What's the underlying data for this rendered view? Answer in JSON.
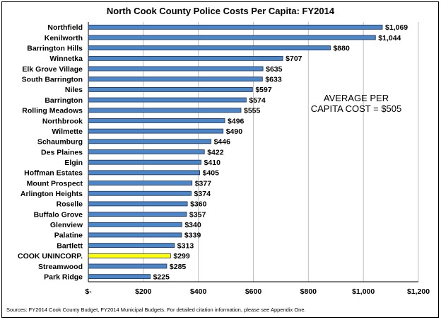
{
  "chart_data": {
    "type": "bar",
    "orientation": "horizontal",
    "title": "North Cook County Police Costs Per Capita: FY2014",
    "categories": [
      "Northfield",
      "Kenilworth",
      "Barrington Hills",
      "Winnetka",
      "Elk Grove Village",
      "South Barrington",
      "Niles",
      "Barrington",
      "Rolling Meadows",
      "Northbrook",
      "Wilmette",
      "Schaumburg",
      "Des Plaines",
      "Elgin",
      "Hoffman Estates",
      "Mount Prospect",
      "Arlington Heights",
      "Roselle",
      "Buffalo Grove",
      "Glenview",
      "Palatine",
      "Bartlett",
      "COOK UNINCORP.",
      "Streamwood",
      "Park Ridge"
    ],
    "values": [
      1069,
      1044,
      880,
      707,
      635,
      633,
      597,
      574,
      555,
      496,
      490,
      446,
      422,
      410,
      405,
      377,
      374,
      360,
      357,
      340,
      339,
      313,
      299,
      285,
      225
    ],
    "value_labels": [
      "$1,069",
      "$1,044",
      "$880",
      "$707",
      "$635",
      "$633",
      "$597",
      "$574",
      "$555",
      "$496",
      "$490",
      "$446",
      "$422",
      "$410",
      "$405",
      "$377",
      "$374",
      "$360",
      "$357",
      "$340",
      "$339",
      "$313",
      "$299",
      "$285",
      "$225"
    ],
    "highlight_category": "COOK UNINCORP.",
    "xlim": [
      0,
      1200
    ],
    "x_ticks": [
      0,
      200,
      400,
      600,
      800,
      1000,
      1200
    ],
    "x_tick_labels": [
      "$-",
      "$200",
      "$400",
      "$600",
      "$800",
      "$1,000",
      "$1,200"
    ],
    "grid": "vertical",
    "annotation": [
      "AVERAGE PER",
      "CAPITA COST  = $505"
    ],
    "bar_color": "#4a86c8",
    "highlight_color": "#ffff00",
    "bar_edge_color": "#1f2f4f"
  },
  "source_note": "Sources: FY2014 Cook County Budget, FY2014 Municipal Budgets. For detailed citation information, please see Appendix One."
}
